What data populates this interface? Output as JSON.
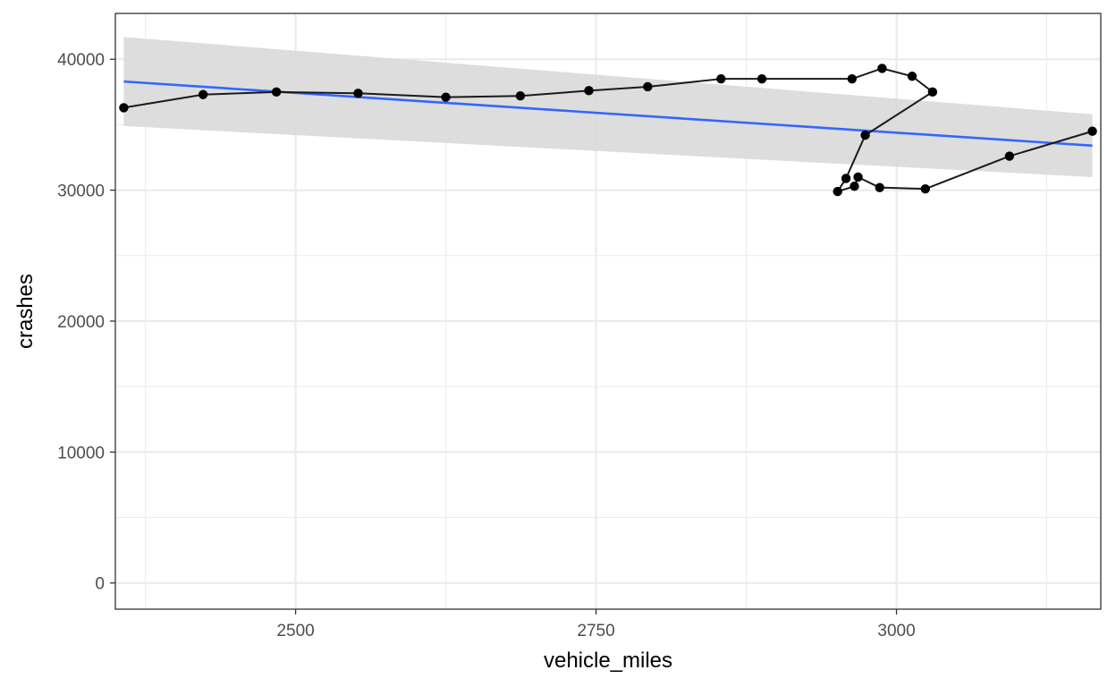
{
  "colors": {
    "line": "#1a1a1a",
    "point": "#000000",
    "fit": "#3366ff",
    "ribbon": "#d9d9d9",
    "grid": "#ebebeb",
    "panel_border": "#333333",
    "tick_label": "#4d4d4d"
  },
  "chart_data": {
    "type": "line",
    "title": "",
    "xlabel": "vehicle_miles",
    "ylabel": "crashes",
    "xlim": [
      2350,
      3170
    ],
    "ylim": [
      -2000,
      43500
    ],
    "grid": true,
    "x_ticks": [
      2500,
      2750,
      3000
    ],
    "x_tick_labels": [
      "2500",
      "2750",
      "3000"
    ],
    "x_minor_ticks": [
      2375,
      2625,
      2875,
      3125
    ],
    "y_ticks": [
      0,
      10000,
      20000,
      30000,
      40000
    ],
    "y_tick_labels": [
      "0",
      "10000",
      "20000",
      "30000",
      "40000"
    ],
    "y_minor_ticks": [
      5000,
      15000,
      25000,
      35000
    ],
    "series": [
      {
        "type": "path",
        "x": [
          2357,
          2423,
          2484,
          2552,
          2625,
          2687,
          2744,
          2793,
          2854,
          2888,
          2963,
          2988,
          3013,
          3030,
          2974,
          2958,
          2951,
          2965,
          2968,
          2986,
          3024,
          3094,
          3163
        ],
        "y": [
          36300,
          37300,
          37500,
          37400,
          37100,
          37200,
          37600,
          37900,
          38500,
          38500,
          38500,
          39300,
          38700,
          37500,
          34200,
          30900,
          29900,
          30300,
          31000,
          30200,
          30100,
          32600,
          34500
        ]
      },
      {
        "type": "smooth",
        "method": "linear",
        "x": [
          2357,
          3163
        ],
        "y": [
          38300,
          33400
        ],
        "ci_lower": [
          34900,
          31000
        ],
        "ci_upper": [
          41700,
          35800
        ]
      }
    ]
  }
}
